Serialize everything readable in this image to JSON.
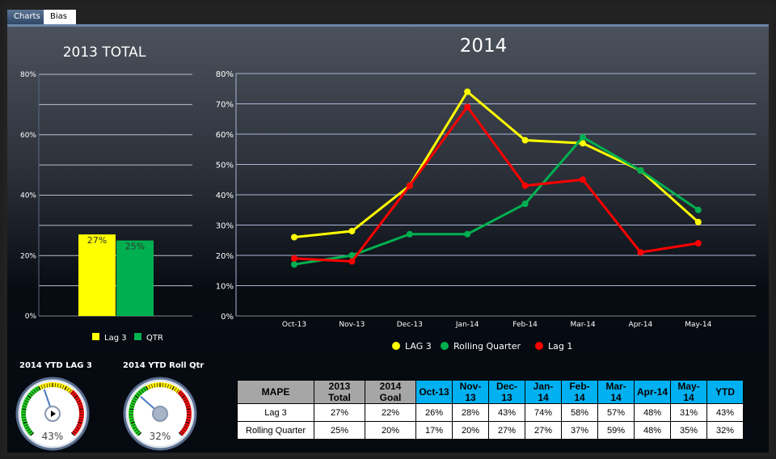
{
  "tabs": [
    {
      "label": "Charts",
      "active": true
    },
    {
      "label": "Bias",
      "active": false
    }
  ],
  "left_chart": {
    "title": "2013 TOTAL",
    "type": "bar",
    "categories": [
      "Lag 3",
      "QTR"
    ],
    "values": [
      27,
      25
    ],
    "value_labels": [
      "27%",
      "25%"
    ],
    "colors": [
      "#ffff00",
      "#00b050"
    ],
    "ylim": [
      0,
      80
    ],
    "yticks": [
      "0%",
      "20%",
      "40%",
      "60%",
      "80%"
    ],
    "legend": [
      "Lag 3",
      "QTR"
    ]
  },
  "chart_data": {
    "type": "line",
    "title": "2014",
    "categories": [
      "Oct-13",
      "Nov-13",
      "Dec-13",
      "Jan-14",
      "Feb-14",
      "Mar-14",
      "Apr-14",
      "May-14"
    ],
    "ylim": [
      0,
      80
    ],
    "yticks": [
      "0%",
      "10%",
      "20%",
      "30%",
      "40%",
      "50%",
      "60%",
      "70%",
      "80%"
    ],
    "grid": true,
    "legend_position": "bottom",
    "series": [
      {
        "name": "LAG 3",
        "color": "#ffff00",
        "values": [
          26,
          28,
          43,
          74,
          58,
          57,
          48,
          31
        ]
      },
      {
        "name": "Rolling Quarter",
        "color": "#00b050",
        "values": [
          17,
          20,
          27,
          27,
          37,
          59,
          48,
          35
        ]
      },
      {
        "name": "Lag 1",
        "color": "#ff0000",
        "values": [
          19,
          18,
          43,
          69,
          43,
          45,
          21,
          24
        ]
      }
    ]
  },
  "gauges": [
    {
      "title": "2014 YTD LAG 3",
      "value": 43,
      "label": "43%"
    },
    {
      "title": "2014 YTD Roll Qtr",
      "value": 32,
      "label": "32%"
    }
  ],
  "table": {
    "headers": [
      "MAPE",
      "2013 Total",
      "2014 Goal",
      "Oct-13",
      "Nov-13",
      "Dec-13",
      "Jan-14",
      "Feb-14",
      "Mar-14",
      "Apr-14",
      "May-14",
      "YTD"
    ],
    "rows": [
      [
        "Lag 3",
        "27%",
        "22%",
        "26%",
        "28%",
        "43%",
        "74%",
        "58%",
        "57%",
        "48%",
        "31%",
        "43%"
      ],
      [
        "Rolling Quarter",
        "25%",
        "20%",
        "17%",
        "20%",
        "27%",
        "27%",
        "37%",
        "59%",
        "48%",
        "35%",
        "32%"
      ]
    ]
  }
}
